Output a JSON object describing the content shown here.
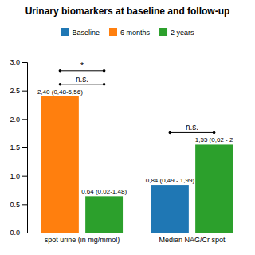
{
  "chart_data": {
    "type": "bar",
    "title": "Urinary biomarkers at baseline and follow-up",
    "categories": [
      "spot urine (in mg/mmol)",
      "Median NAG/Cr spot"
    ],
    "series": [
      {
        "name": "Baseline",
        "values": [
          null,
          0.84
        ],
        "value_labels": [
          null,
          "0,84 (0,49 - 1,99)"
        ]
      },
      {
        "name": "6 months",
        "values": [
          2.4,
          null
        ],
        "value_labels": [
          "2,40 (0,48-5,56)",
          null
        ]
      },
      {
        "name": "2 years",
        "values": [
          0.64,
          1.55
        ],
        "value_labels": [
          "0,64 (0,02-1,48)",
          "1,55 (0,62 - 2"
        ]
      }
    ],
    "ylim": [
      0,
      3.0
    ],
    "yticks": [
      {
        "value": 0,
        "label": "0.0"
      },
      {
        "value": 0.5,
        "label": "0.5"
      },
      {
        "value": 1,
        "label": "1.0"
      },
      {
        "value": 1.5,
        "label": "1.5"
      },
      {
        "value": 2,
        "label": "2.0"
      },
      {
        "value": 2.5,
        "label": "2.5"
      },
      {
        "value": 3,
        "label": "3.0"
      }
    ],
    "grid": false,
    "legend": "top",
    "data_labels": true,
    "annotations": [
      {
        "text": "n.s.",
        "x": 0
      },
      {
        "text": "*",
        "x": 0
      },
      {
        "text": "n.s.",
        "x": 1
      }
    ]
  }
}
